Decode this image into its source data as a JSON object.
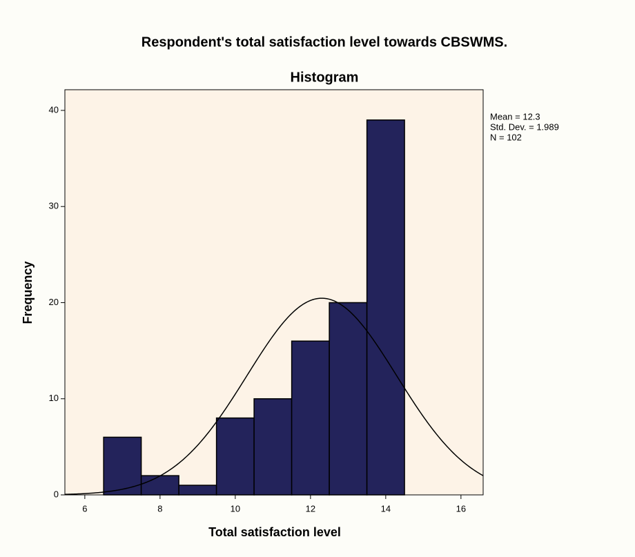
{
  "chart_data": {
    "type": "histogram",
    "title": "Respondent's total satisfaction level towards CBSWMS.",
    "subtitle": "Histogram",
    "x_label": "Total satisfaction level",
    "y_label": "Frequency",
    "bins": [
      6.5,
      7.5,
      8.5,
      9.5,
      10.5,
      11.5,
      12.5,
      13.5,
      14.5
    ],
    "values": [
      6,
      2,
      1,
      8,
      10,
      16,
      20,
      39
    ],
    "color": "#23235b",
    "background": "#fdf3e7",
    "stats": [
      {
        "label": "Mean = 12.3",
        "value": 12.3
      },
      {
        "label": "Std. Dev. = 1.989",
        "value": 1.989
      },
      {
        "label": "N = 102",
        "value": 102
      }
    ],
    "xlim": [
      5.47,
      16.59
    ],
    "xticks": [
      6,
      8,
      10,
      12,
      14,
      16
    ],
    "ylim": [
      0,
      42.15
    ],
    "yticks": [
      0,
      10,
      20,
      30,
      40
    ]
  }
}
